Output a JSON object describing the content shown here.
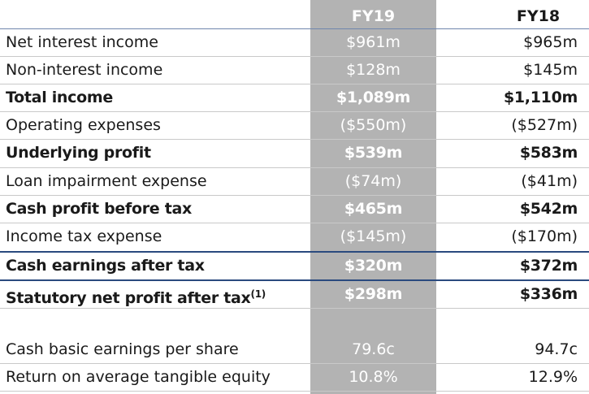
{
  "headers": {
    "fy19": "FY19",
    "fy18": "FY18"
  },
  "rows": [
    {
      "label": "Net interest income",
      "fy19": "$961m",
      "fy18": "$965m"
    },
    {
      "label": "Non-interest income",
      "fy19": "$128m",
      "fy18": "$145m"
    },
    {
      "label": "Total income",
      "fy19": "$1,089m",
      "fy18": "$1,110m"
    },
    {
      "label": "Operating expenses",
      "fy19": "($550m)",
      "fy18": "($527m)"
    },
    {
      "label": "Underlying profit",
      "fy19": "$539m",
      "fy18": "$583m"
    },
    {
      "label": "Loan impairment expense",
      "fy19": "($74m)",
      "fy18": "($41m)"
    },
    {
      "label": "Cash profit before tax",
      "fy19": "$465m",
      "fy18": "$542m"
    },
    {
      "label": "Income tax expense",
      "fy19": "($145m)",
      "fy18": "($170m)"
    },
    {
      "label": "Cash earnings after tax",
      "fy19": "$320m",
      "fy18": "$372m"
    },
    {
      "label": "Statutory net profit after tax",
      "footnote": "(1)",
      "fy19": "$298m",
      "fy18": "$336m"
    },
    {
      "label": "Cash basic earnings per share",
      "fy19": "79.6c",
      "fy18": "94.7c"
    },
    {
      "label": "Return on average tangible equity",
      "fy19": "10.8%",
      "fy18": "12.9%"
    }
  ],
  "colors": {
    "fy19_column": "#b3b3b3",
    "rule_primary": "#2a4a7e",
    "rule_secondary": "#6f86ad"
  }
}
